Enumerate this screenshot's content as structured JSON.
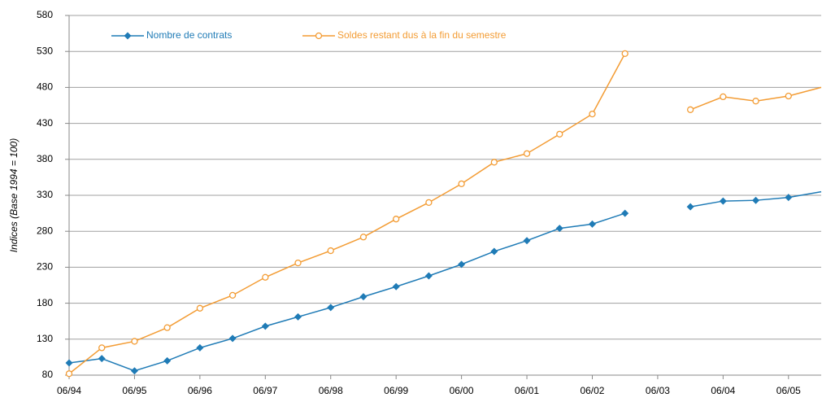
{
  "chart_data": {
    "type": "line",
    "ylabel": "Indices (Base 1994 = 100)",
    "categories": [
      "06/94",
      null,
      "06/95",
      null,
      "06/96",
      null,
      "06/97",
      null,
      "06/98",
      null,
      "06/99",
      null,
      "06/00",
      null,
      "06/01",
      null,
      "06/02",
      null,
      "06/03",
      null,
      "06/04",
      null,
      "06/05",
      null
    ],
    "series": [
      {
        "name": "Nombre de contrats",
        "color": "#1f7bb6",
        "marker": "diamond",
        "values": [
          97,
          103,
          86,
          100,
          118,
          131,
          148,
          161,
          174,
          189,
          203,
          218,
          234,
          252,
          267,
          284,
          290,
          305,
          null,
          314,
          322,
          323,
          327,
          335
        ]
      },
      {
        "name": "Soldes restant dus à la fin du semestre",
        "color": "#f39c34",
        "marker": "circle",
        "values": [
          82,
          118,
          127,
          146,
          173,
          191,
          216,
          236,
          253,
          272,
          297,
          320,
          346,
          376,
          388,
          415,
          443,
          527,
          null,
          449,
          467,
          461,
          468,
          480
        ]
      }
    ],
    "ylim": [
      80,
      580
    ],
    "yticks": [
      80,
      130,
      180,
      230,
      280,
      330,
      380,
      430,
      480,
      530,
      580
    ],
    "grid": true,
    "legend": "top"
  }
}
